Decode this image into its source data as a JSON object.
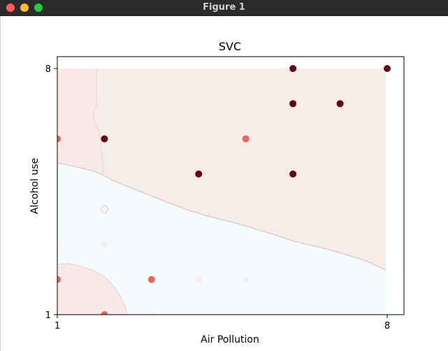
{
  "window": {
    "title": "Figure 1"
  },
  "chart_data": {
    "type": "scatter",
    "title": "SVC",
    "xlabel": "Air Pollution",
    "ylabel": "Alcohol use",
    "xlim": [
      1,
      8
    ],
    "ylim": [
      1,
      8
    ],
    "xticks": [
      "1",
      "8"
    ],
    "yticks": [
      "1",
      "8"
    ],
    "grid": false,
    "legend": "none",
    "colormap": "Reds",
    "regions": [
      {
        "name": "region-0",
        "color": "#f5fafc"
      },
      {
        "name": "region-1",
        "color": "#fbe8e8"
      },
      {
        "name": "region-2",
        "color": "#f8ece8"
      }
    ],
    "points": [
      {
        "x": 1,
        "y": 6,
        "color": "#e8665a"
      },
      {
        "x": 2,
        "y": 6,
        "color": "#67000d"
      },
      {
        "x": 2,
        "y": 4,
        "color": "#fdf3f1"
      },
      {
        "x": 2,
        "y": 3,
        "color": "#f4eeec"
      },
      {
        "x": 1,
        "y": 3,
        "color": "#f8f2f0"
      },
      {
        "x": 1,
        "y": 2,
        "color": "#e8665a"
      },
      {
        "x": 2,
        "y": 1,
        "color": "#e8665a"
      },
      {
        "x": 3,
        "y": 2,
        "color": "#e8665a"
      },
      {
        "x": 3,
        "y": 1,
        "color": "#f8f1ef"
      },
      {
        "x": 4,
        "y": 5,
        "color": "#67000d"
      },
      {
        "x": 4,
        "y": 2,
        "color": "#f7efed"
      },
      {
        "x": 5,
        "y": 6,
        "color": "#e8665a"
      },
      {
        "x": 5,
        "y": 2,
        "color": "#f7efed"
      },
      {
        "x": 6,
        "y": 8,
        "color": "#67000d"
      },
      {
        "x": 6,
        "y": 7,
        "color": "#67000d"
      },
      {
        "x": 6,
        "y": 5,
        "color": "#67000d"
      },
      {
        "x": 7,
        "y": 7,
        "color": "#67000d"
      },
      {
        "x": 8,
        "y": 8,
        "color": "#67000d"
      }
    ]
  }
}
